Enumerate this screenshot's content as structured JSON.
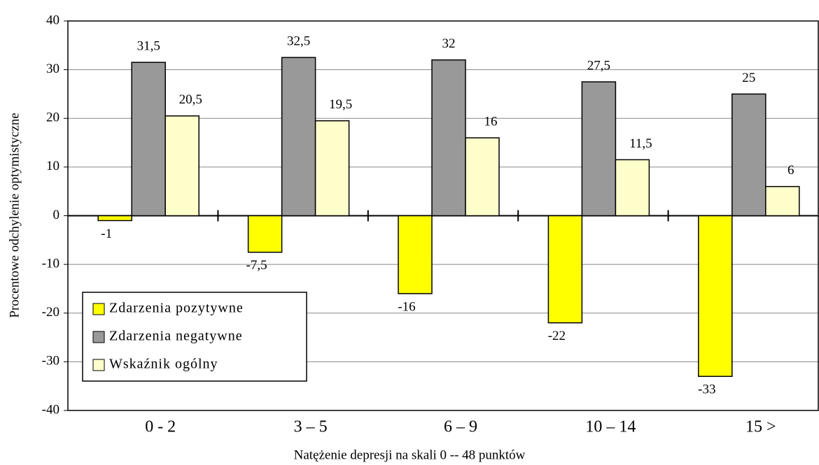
{
  "chart_data": {
    "type": "bar",
    "x_label": "Natężenie depresji na skali   0 -- 48 punktów",
    "y_label": "Procentowe odchylenie optymistyczne",
    "categories": [
      "0 - 2",
      "3 – 5",
      "6 – 9",
      "10 – 14",
      "15 >"
    ],
    "series": [
      {
        "name": "Zdarzenia pozytywne",
        "color": "#ffff00",
        "values": [
          -1,
          -7.5,
          -16,
          -22,
          -33
        ],
        "value_labels": [
          "-1",
          "-7,5",
          "-16",
          "-22",
          "-33"
        ]
      },
      {
        "name": "Zdarzenia negatywne",
        "color": "#999999",
        "values": [
          31.5,
          32.5,
          32,
          27.5,
          25
        ],
        "value_labels": [
          "31,5",
          "32,5",
          "32",
          "27,5",
          "25"
        ]
      },
      {
        "name": "Wskaźnik ogólny",
        "color": "#ffffcc",
        "values": [
          20.5,
          19.5,
          16,
          11.5,
          6
        ],
        "value_labels": [
          "20,5",
          "19,5",
          "16",
          "11,5",
          "6"
        ]
      }
    ],
    "ylim": [
      -40,
      40
    ],
    "yticks": [
      -40,
      -30,
      -20,
      -10,
      0,
      10,
      20,
      30,
      40
    ],
    "grid": true,
    "legend": "lower-left"
  }
}
